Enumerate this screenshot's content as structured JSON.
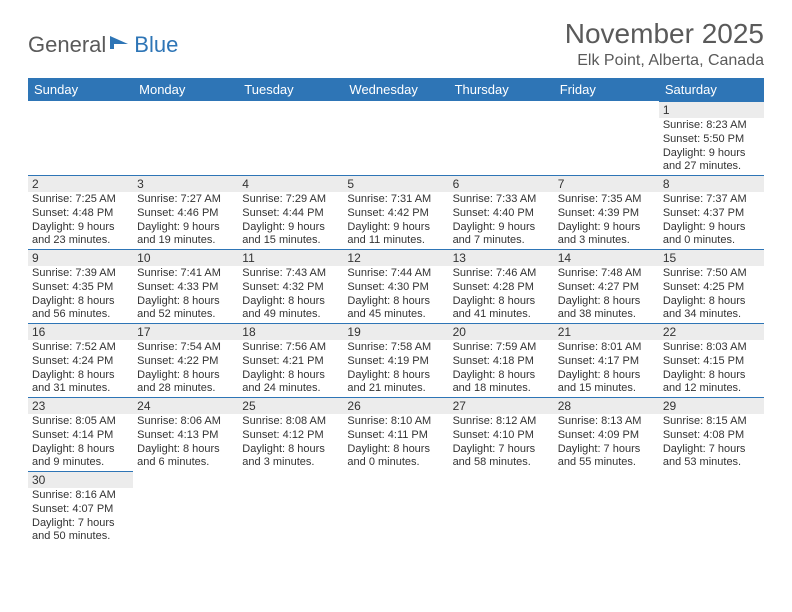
{
  "logo": {
    "textA": "General",
    "textB": "Blue"
  },
  "title": "November 2025",
  "location": "Elk Point, Alberta, Canada",
  "colors": {
    "header_bg": "#2e75b6",
    "header_text": "#ffffff",
    "daynum_bg": "#ececec",
    "border": "#2e75b6",
    "text": "#333333",
    "logo_gray": "#5a5a5a",
    "logo_blue": "#2e75b6"
  },
  "days_of_week": [
    "Sunday",
    "Monday",
    "Tuesday",
    "Wednesday",
    "Thursday",
    "Friday",
    "Saturday"
  ],
  "weeks": [
    [
      null,
      null,
      null,
      null,
      null,
      null,
      {
        "n": "1",
        "r": "Sunrise: 8:23 AM",
        "s": "Sunset: 5:50 PM",
        "d1": "Daylight: 9 hours",
        "d2": "and 27 minutes."
      }
    ],
    [
      {
        "n": "2",
        "r": "Sunrise: 7:25 AM",
        "s": "Sunset: 4:48 PM",
        "d1": "Daylight: 9 hours",
        "d2": "and 23 minutes."
      },
      {
        "n": "3",
        "r": "Sunrise: 7:27 AM",
        "s": "Sunset: 4:46 PM",
        "d1": "Daylight: 9 hours",
        "d2": "and 19 minutes."
      },
      {
        "n": "4",
        "r": "Sunrise: 7:29 AM",
        "s": "Sunset: 4:44 PM",
        "d1": "Daylight: 9 hours",
        "d2": "and 15 minutes."
      },
      {
        "n": "5",
        "r": "Sunrise: 7:31 AM",
        "s": "Sunset: 4:42 PM",
        "d1": "Daylight: 9 hours",
        "d2": "and 11 minutes."
      },
      {
        "n": "6",
        "r": "Sunrise: 7:33 AM",
        "s": "Sunset: 4:40 PM",
        "d1": "Daylight: 9 hours",
        "d2": "and 7 minutes."
      },
      {
        "n": "7",
        "r": "Sunrise: 7:35 AM",
        "s": "Sunset: 4:39 PM",
        "d1": "Daylight: 9 hours",
        "d2": "and 3 minutes."
      },
      {
        "n": "8",
        "r": "Sunrise: 7:37 AM",
        "s": "Sunset: 4:37 PM",
        "d1": "Daylight: 9 hours",
        "d2": "and 0 minutes."
      }
    ],
    [
      {
        "n": "9",
        "r": "Sunrise: 7:39 AM",
        "s": "Sunset: 4:35 PM",
        "d1": "Daylight: 8 hours",
        "d2": "and 56 minutes."
      },
      {
        "n": "10",
        "r": "Sunrise: 7:41 AM",
        "s": "Sunset: 4:33 PM",
        "d1": "Daylight: 8 hours",
        "d2": "and 52 minutes."
      },
      {
        "n": "11",
        "r": "Sunrise: 7:43 AM",
        "s": "Sunset: 4:32 PM",
        "d1": "Daylight: 8 hours",
        "d2": "and 49 minutes."
      },
      {
        "n": "12",
        "r": "Sunrise: 7:44 AM",
        "s": "Sunset: 4:30 PM",
        "d1": "Daylight: 8 hours",
        "d2": "and 45 minutes."
      },
      {
        "n": "13",
        "r": "Sunrise: 7:46 AM",
        "s": "Sunset: 4:28 PM",
        "d1": "Daylight: 8 hours",
        "d2": "and 41 minutes."
      },
      {
        "n": "14",
        "r": "Sunrise: 7:48 AM",
        "s": "Sunset: 4:27 PM",
        "d1": "Daylight: 8 hours",
        "d2": "and 38 minutes."
      },
      {
        "n": "15",
        "r": "Sunrise: 7:50 AM",
        "s": "Sunset: 4:25 PM",
        "d1": "Daylight: 8 hours",
        "d2": "and 34 minutes."
      }
    ],
    [
      {
        "n": "16",
        "r": "Sunrise: 7:52 AM",
        "s": "Sunset: 4:24 PM",
        "d1": "Daylight: 8 hours",
        "d2": "and 31 minutes."
      },
      {
        "n": "17",
        "r": "Sunrise: 7:54 AM",
        "s": "Sunset: 4:22 PM",
        "d1": "Daylight: 8 hours",
        "d2": "and 28 minutes."
      },
      {
        "n": "18",
        "r": "Sunrise: 7:56 AM",
        "s": "Sunset: 4:21 PM",
        "d1": "Daylight: 8 hours",
        "d2": "and 24 minutes."
      },
      {
        "n": "19",
        "r": "Sunrise: 7:58 AM",
        "s": "Sunset: 4:19 PM",
        "d1": "Daylight: 8 hours",
        "d2": "and 21 minutes."
      },
      {
        "n": "20",
        "r": "Sunrise: 7:59 AM",
        "s": "Sunset: 4:18 PM",
        "d1": "Daylight: 8 hours",
        "d2": "and 18 minutes."
      },
      {
        "n": "21",
        "r": "Sunrise: 8:01 AM",
        "s": "Sunset: 4:17 PM",
        "d1": "Daylight: 8 hours",
        "d2": "and 15 minutes."
      },
      {
        "n": "22",
        "r": "Sunrise: 8:03 AM",
        "s": "Sunset: 4:15 PM",
        "d1": "Daylight: 8 hours",
        "d2": "and 12 minutes."
      }
    ],
    [
      {
        "n": "23",
        "r": "Sunrise: 8:05 AM",
        "s": "Sunset: 4:14 PM",
        "d1": "Daylight: 8 hours",
        "d2": "and 9 minutes."
      },
      {
        "n": "24",
        "r": "Sunrise: 8:06 AM",
        "s": "Sunset: 4:13 PM",
        "d1": "Daylight: 8 hours",
        "d2": "and 6 minutes."
      },
      {
        "n": "25",
        "r": "Sunrise: 8:08 AM",
        "s": "Sunset: 4:12 PM",
        "d1": "Daylight: 8 hours",
        "d2": "and 3 minutes."
      },
      {
        "n": "26",
        "r": "Sunrise: 8:10 AM",
        "s": "Sunset: 4:11 PM",
        "d1": "Daylight: 8 hours",
        "d2": "and 0 minutes."
      },
      {
        "n": "27",
        "r": "Sunrise: 8:12 AM",
        "s": "Sunset: 4:10 PM",
        "d1": "Daylight: 7 hours",
        "d2": "and 58 minutes."
      },
      {
        "n": "28",
        "r": "Sunrise: 8:13 AM",
        "s": "Sunset: 4:09 PM",
        "d1": "Daylight: 7 hours",
        "d2": "and 55 minutes."
      },
      {
        "n": "29",
        "r": "Sunrise: 8:15 AM",
        "s": "Sunset: 4:08 PM",
        "d1": "Daylight: 7 hours",
        "d2": "and 53 minutes."
      }
    ],
    [
      {
        "n": "30",
        "r": "Sunrise: 8:16 AM",
        "s": "Sunset: 4:07 PM",
        "d1": "Daylight: 7 hours",
        "d2": "and 50 minutes."
      },
      null,
      null,
      null,
      null,
      null,
      null
    ]
  ]
}
